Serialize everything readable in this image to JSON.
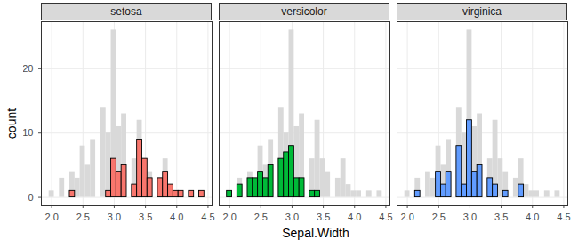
{
  "chart_data": {
    "type": "histogram",
    "x_label": "Sepal.Width",
    "y_label": "count",
    "bins": [
      1.9586,
      2.0414,
      2.1241,
      2.2069,
      2.2897,
      2.3724,
      2.4552,
      2.5379,
      2.6207,
      2.7034,
      2.7862,
      2.869,
      2.9517,
      3.0345,
      3.1172,
      3.2,
      3.2828,
      3.3655,
      3.4483,
      3.531,
      3.6138,
      3.6966,
      3.7793,
      3.8621,
      3.9448,
      4.0276,
      4.1103,
      4.1931,
      4.2759,
      4.3586,
      4.4414
    ],
    "series": [
      {
        "name": "setosa",
        "color": "#F8766D",
        "values": [
          0,
          0,
          0,
          0,
          1,
          0,
          0,
          0,
          0,
          0,
          0,
          1,
          6,
          4,
          5,
          0,
          2,
          9,
          6,
          3,
          0,
          3,
          4,
          2,
          1,
          1,
          0,
          1,
          0,
          1
        ]
      },
      {
        "name": "versicolor",
        "color": "#00BA38",
        "values": [
          1,
          0,
          2,
          0,
          3,
          3,
          4,
          3,
          5,
          0,
          6,
          7,
          8,
          3,
          3,
          0,
          1,
          1,
          0,
          0,
          0,
          0,
          0,
          0,
          0,
          0,
          0,
          0,
          0,
          0
        ]
      },
      {
        "name": "virginica",
        "color": "#619CFF",
        "values": [
          0,
          0,
          1,
          0,
          0,
          0,
          4,
          2,
          4,
          0,
          8,
          2,
          12,
          4,
          5,
          0,
          3,
          2,
          0,
          1,
          0,
          0,
          2,
          0,
          0,
          0,
          0,
          0,
          0,
          0
        ]
      }
    ],
    "xlim": [
      1.835,
      4.565
    ],
    "ylim": [
      -1.3,
      27.3
    ],
    "xticks": [
      {
        "value": 2,
        "label": "2.0"
      },
      2.5,
      {
        "value": 3,
        "label": "3.0"
      },
      3.5,
      {
        "value": 4,
        "label": "4.0"
      },
      4.5
    ],
    "yticks": [
      0,
      10,
      20
    ],
    "grid": true
  }
}
